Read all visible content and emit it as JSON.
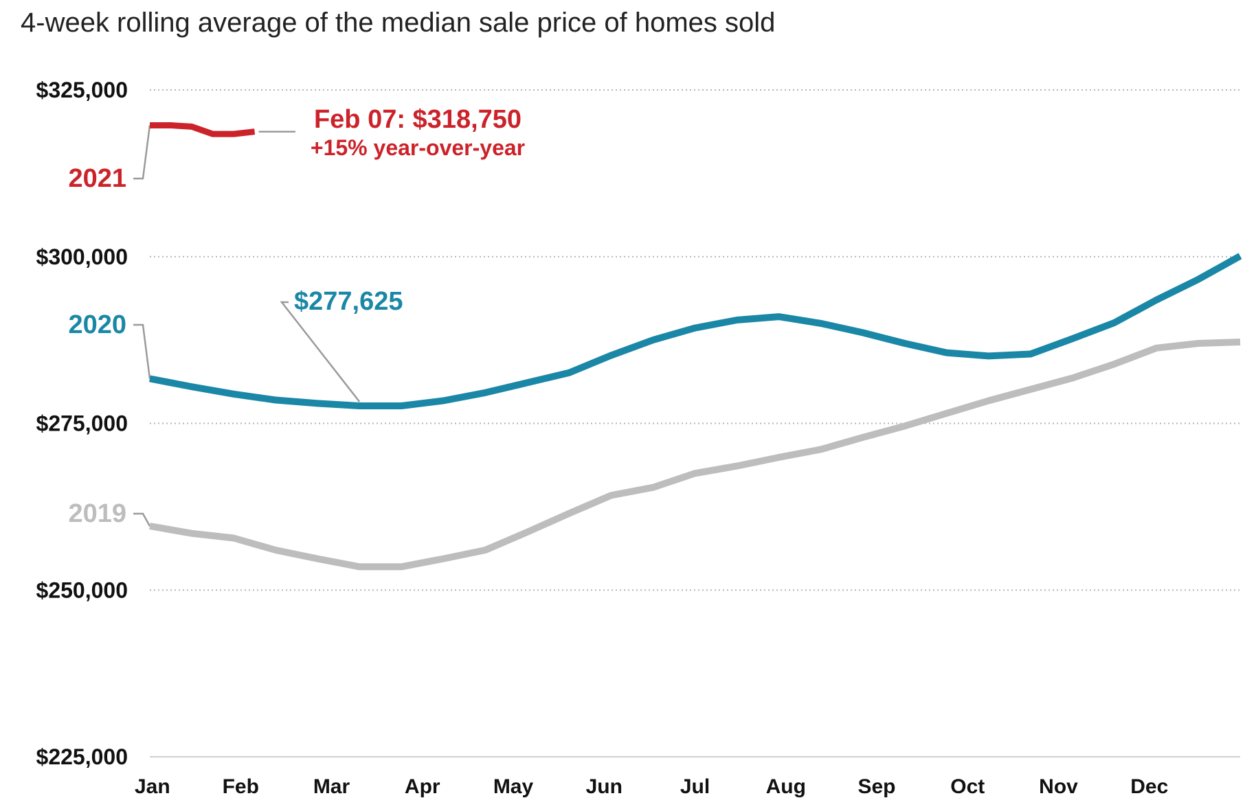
{
  "chart_data": {
    "type": "line",
    "title": "4-week rolling average of the median sale price of homes sold",
    "ylim": [
      225000,
      325000
    ],
    "y_ticks": [
      {
        "value": 325000,
        "label": "$325,000"
      },
      {
        "value": 300000,
        "label": "$300,000"
      },
      {
        "value": 275000,
        "label": "$275,000"
      },
      {
        "value": 250000,
        "label": "$250,000"
      },
      {
        "value": 225000,
        "label": "$225,000"
      }
    ],
    "grid": true,
    "month_labels": [
      "Jan",
      "Feb",
      "Mar",
      "Apr",
      "May",
      "Jun",
      "Jul",
      "Aug",
      "Sep",
      "Oct",
      "Nov",
      "Dec"
    ],
    "week_count": 53,
    "series": [
      {
        "name": "2019",
        "color": "#bdbdbd",
        "weeks": [
          0,
          2,
          4,
          6,
          8,
          10,
          12,
          14,
          16,
          18,
          20,
          22,
          24,
          26,
          28,
          30,
          32,
          34,
          36,
          38,
          40,
          42,
          44,
          46,
          48,
          50,
          52
        ],
        "values": [
          259600,
          258500,
          257800,
          256000,
          254700,
          253500,
          253500,
          254700,
          256000,
          258700,
          261500,
          264200,
          265400,
          267500,
          268600,
          269900,
          271100,
          272900,
          274600,
          276500,
          278400,
          280100,
          281800,
          283900,
          286300,
          287000,
          287200
        ]
      },
      {
        "name": "2020",
        "color": "#1a87a6",
        "weeks": [
          0,
          2,
          4,
          6,
          8,
          10,
          12,
          14,
          16,
          18,
          20,
          22,
          24,
          26,
          28,
          30,
          32,
          34,
          36,
          38,
          40,
          42,
          44,
          46,
          48,
          50,
          52
        ],
        "values": [
          281700,
          280500,
          279400,
          278500,
          278000,
          277625,
          277625,
          278400,
          279600,
          281100,
          282600,
          285200,
          287500,
          289300,
          290500,
          291000,
          290000,
          288600,
          287000,
          285600,
          285100,
          285400,
          287700,
          290100,
          293500,
          296600,
          300100
        ]
      },
      {
        "name": "2021",
        "color": "#cc2229",
        "weeks": [
          0,
          1,
          2,
          3,
          4,
          5
        ],
        "values": [
          319700,
          319700,
          319500,
          318400,
          318400,
          318750
        ]
      }
    ],
    "annotations": {
      "latest": "Feb 07: $318,750",
      "change": "+15% year-over-year",
      "low_2020": "$277,625"
    }
  }
}
